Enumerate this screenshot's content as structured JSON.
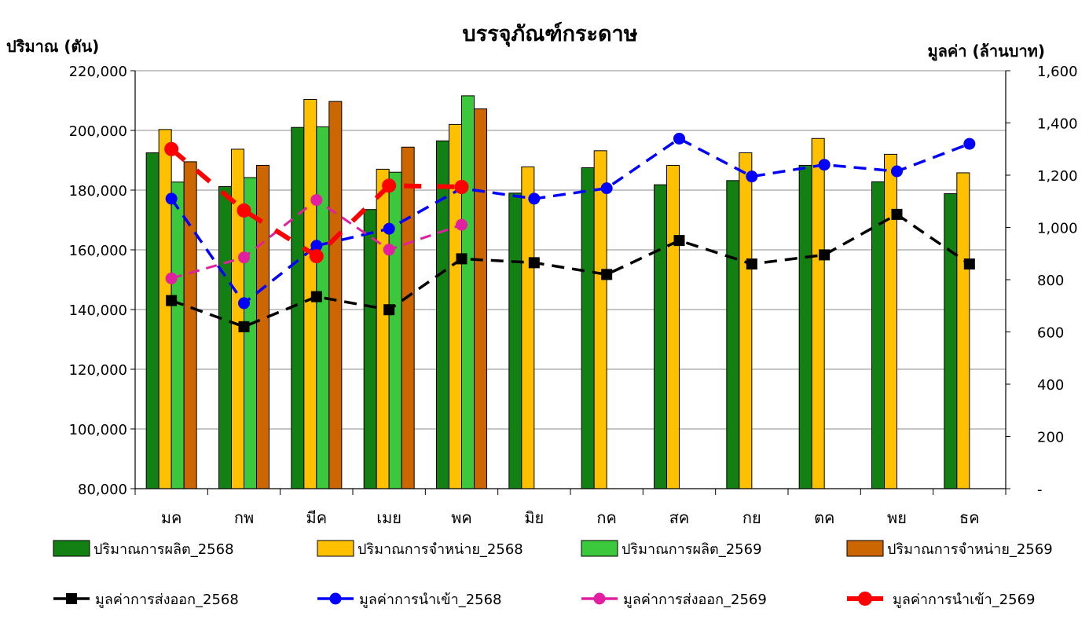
{
  "chart_data": {
    "type": "bar",
    "title": "บรรจุภัณฑ์กระดาษ",
    "ylabel": "ปริมาณ (ตัน)",
    "y2label": "มูลค่า (ล้านบาท)",
    "categories": [
      "มค",
      "กพ",
      "มีค",
      "เมย",
      "พค",
      "มิย",
      "กค",
      "สค",
      "กย",
      "ตค",
      "พย",
      "ธค"
    ],
    "ylim": [
      80000,
      220000
    ],
    "y2lim": [
      0,
      1600
    ],
    "yticks": [
      "80,000",
      "100,000",
      "120,000",
      "140,000",
      "160,000",
      "180,000",
      "200,000",
      "220,000"
    ],
    "y2ticks": [
      "-",
      "200",
      "400",
      "600",
      "800",
      "1,000",
      "1,200",
      "1,400",
      "1,600"
    ],
    "grid": true,
    "legend_position": "bottom",
    "bar_series": [
      {
        "name": "ปริมาณการผลิต_2568",
        "color": "#128012",
        "values": [
          192500,
          181200,
          201000,
          173500,
          196500,
          179000,
          187500,
          181800,
          183200,
          188300,
          182800,
          178800
        ]
      },
      {
        "name": "ปริมาณการจำหน่าย_2568",
        "color": "#FFC000",
        "values": [
          200300,
          193700,
          210400,
          187000,
          202000,
          187800,
          193200,
          188300,
          192500,
          197300,
          192000,
          185800
        ]
      },
      {
        "name": "ปริมาณการผลิต_2569",
        "color": "#3CC83C",
        "values": [
          182700,
          184200,
          201200,
          186000,
          211600,
          null,
          null,
          null,
          null,
          null,
          null,
          null
        ]
      },
      {
        "name": "ปริมาณการจำหน่าย_2569",
        "color": "#CC6600",
        "values": [
          189500,
          188300,
          209700,
          194400,
          207200,
          null,
          null,
          null,
          null,
          null,
          null,
          null
        ]
      }
    ],
    "line_series": [
      {
        "name": "มูลค่าการส่งออก_2568",
        "color": "#000000",
        "marker": "square",
        "values": [
          720,
          620,
          735,
          685,
          880,
          865,
          820,
          950,
          860,
          895,
          1050,
          860
        ]
      },
      {
        "name": "มูลค่าการนำเข้า_2568",
        "color": "#0000FF",
        "marker": "circle",
        "values": [
          1110,
          710,
          930,
          995,
          1150,
          1110,
          1150,
          1340,
          1195,
          1240,
          1215,
          1320
        ]
      },
      {
        "name": "มูลค่าการส่งออก_2569",
        "color": "#E020A0",
        "marker": "circle",
        "values": [
          805,
          885,
          1105,
          915,
          1010,
          null,
          null,
          null,
          null,
          null,
          null,
          null
        ]
      },
      {
        "name": "มูลค่าการนำเข้า_2569",
        "color": "#FF0000",
        "marker": "circle",
        "values": [
          1300,
          1065,
          890,
          1160,
          1155,
          null,
          null,
          null,
          null,
          null,
          null,
          null
        ]
      }
    ]
  }
}
